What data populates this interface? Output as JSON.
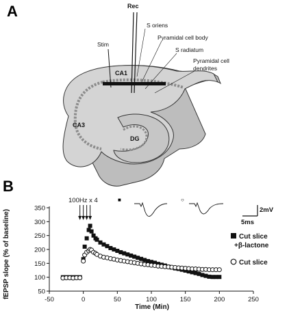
{
  "panel_a": {
    "letter": "A",
    "labels": {
      "rec": "Rec",
      "stim": "Stim",
      "s_oriens": "S oriens",
      "pyramidal_cell_body": "Pyramidal cell body",
      "s_radiatum": "S radiatum",
      "pyramidal_cell_dendrites_1": "Pyramidal cell",
      "pyramidal_cell_dendrites_2": "dendrites",
      "ca1": "CA1",
      "ca3": "CA3",
      "dg": "DG"
    },
    "colors": {
      "tissue": "#d4d4d4",
      "tissue_dark": "#b8b8b8",
      "outline": "#333333",
      "cells": "#8c8c8c"
    }
  },
  "panel_b": {
    "letter": "B",
    "stim_label": "100Hz x 4",
    "trace_marker_filled": "■",
    "trace_marker_open": "○",
    "scale_bar": {
      "voltage": "2mV",
      "time": "5ms"
    },
    "legend": [
      {
        "marker": "filled-square",
        "line1": "Cut slice",
        "line2": "+β-lactone"
      },
      {
        "marker": "open-circle",
        "line1": "Cut slice",
        "line2": ""
      }
    ]
  },
  "chart_data": {
    "type": "scatter",
    "xlabel": "Time (Min)",
    "ylabel": "fEPSP slope (% of baseline)",
    "xlim": [
      -50,
      250
    ],
    "ylim": [
      50,
      350
    ],
    "xticks": [
      -50,
      0,
      50,
      100,
      150,
      200,
      250
    ],
    "yticks": [
      50,
      100,
      150,
      200,
      250,
      300,
      350
    ],
    "stimulus_times": [
      -5,
      0,
      5,
      10
    ],
    "series": [
      {
        "name": "Cut slice +β-lactone",
        "marker": "filled-square",
        "x": [
          -30,
          -25,
          -20,
          -15,
          -10,
          -5,
          0,
          2,
          5,
          8,
          10,
          12,
          15,
          18,
          20,
          25,
          30,
          35,
          40,
          45,
          50,
          55,
          60,
          65,
          70,
          75,
          80,
          85,
          90,
          95,
          100,
          105,
          110,
          115,
          120,
          125,
          130,
          135,
          140,
          145,
          150,
          155,
          160,
          165,
          170,
          175,
          180,
          185,
          190,
          195,
          200
        ],
        "y": [
          100,
          100,
          100,
          100,
          100,
          100,
          165,
          210,
          240,
          270,
          285,
          265,
          250,
          240,
          235,
          225,
          218,
          212,
          205,
          200,
          195,
          190,
          186,
          182,
          178,
          174,
          170,
          166,
          162,
          158,
          155,
          152,
          148,
          145,
          142,
          138,
          135,
          132,
          130,
          127,
          124,
          121,
          118,
          115,
          112,
          108,
          105,
          102,
          101,
          101,
          101
        ]
      },
      {
        "name": "Cut slice",
        "marker": "open-circle",
        "x": [
          -30,
          -25,
          -20,
          -15,
          -10,
          -5,
          0,
          2,
          5,
          8,
          10,
          12,
          15,
          18,
          20,
          25,
          30,
          35,
          40,
          45,
          50,
          55,
          60,
          65,
          70,
          75,
          80,
          85,
          90,
          95,
          100,
          105,
          110,
          115,
          120,
          125,
          130,
          135,
          140,
          145,
          150,
          155,
          160,
          165,
          170,
          175,
          180,
          185,
          190,
          195,
          200
        ],
        "y": [
          97,
          98,
          98,
          97,
          98,
          98,
          158,
          180,
          190,
          195,
          200,
          198,
          190,
          186,
          182,
          176,
          172,
          170,
          167,
          165,
          162,
          160,
          158,
          156,
          154,
          152,
          150,
          148,
          146,
          145,
          143,
          142,
          140,
          139,
          138,
          137,
          136,
          135,
          134,
          133,
          132,
          131,
          130,
          130,
          129,
          128,
          128,
          127,
          127,
          127,
          127
        ]
      }
    ]
  }
}
